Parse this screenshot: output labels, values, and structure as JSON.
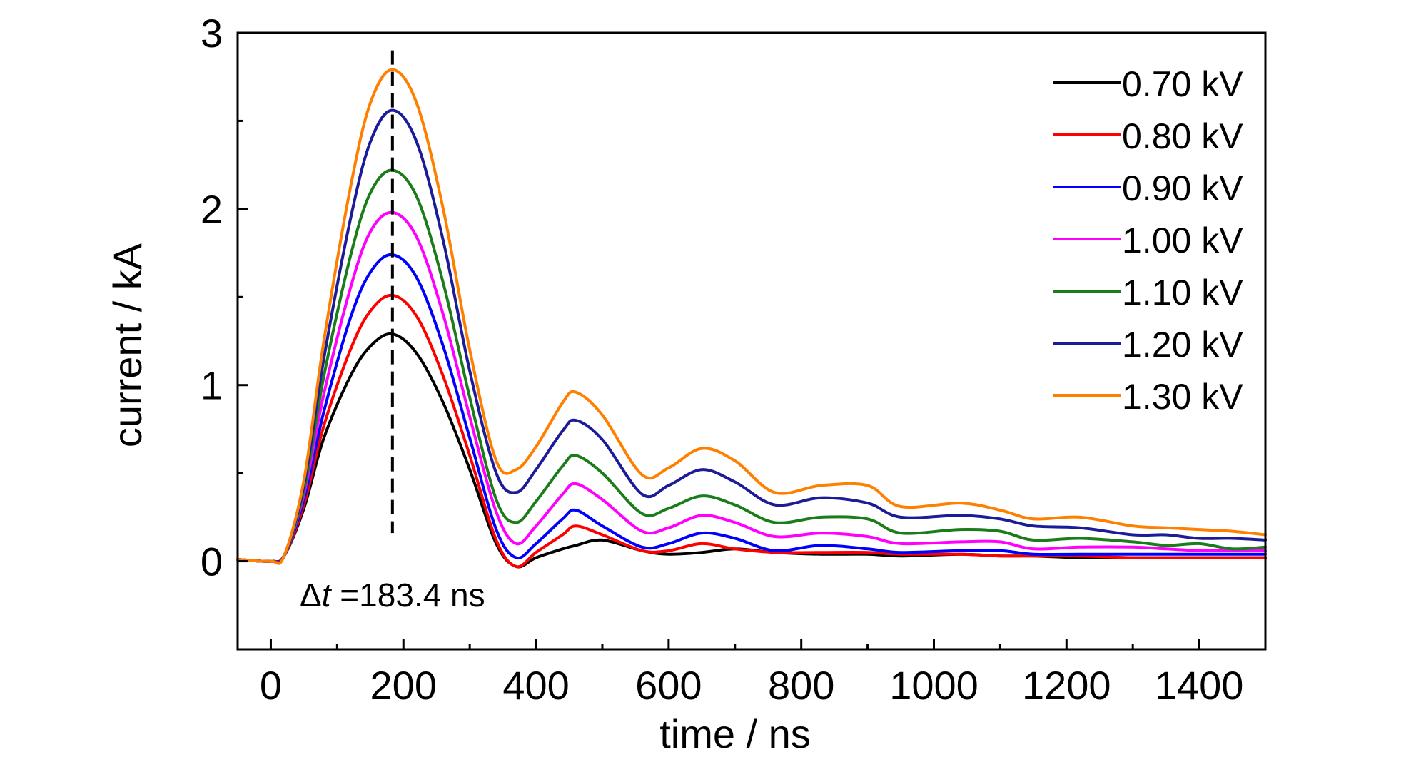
{
  "chart_data": {
    "type": "line",
    "xlabel": "time / ns",
    "ylabel": "current / kA",
    "xlim": [
      -50,
      1500
    ],
    "ylim": [
      -0.5,
      3
    ],
    "x_ticks": [
      0,
      200,
      400,
      600,
      800,
      1000,
      1200,
      1400
    ],
    "x_tick_labels": [
      "0",
      "200",
      "400",
      "600",
      "800",
      "1000",
      "1200",
      "1400"
    ],
    "y_ticks": [
      0,
      1,
      2,
      3
    ],
    "y_tick_labels": [
      "0",
      "1",
      "2",
      "3"
    ],
    "grid": false,
    "legend_position": "top-right",
    "annotation": {
      "delta_symbol": "Δ",
      "variable": "t",
      "text": " =183.4 ns",
      "marker_x": 183.4,
      "marker_y_range": [
        0.16,
        2.9
      ]
    },
    "x": [
      -50,
      0,
      20,
      50,
      80,
      120,
      150,
      183,
      220,
      260,
      300,
      340,
      370,
      400,
      440,
      460,
      500,
      560,
      600,
      650,
      700,
      760,
      830,
      900,
      950,
      1040,
      1100,
      1150,
      1220,
      1300,
      1350,
      1400,
      1450,
      1500
    ],
    "series": [
      {
        "name": "0.70 kV",
        "color": "#000000",
        "values": [
          0.01,
          0.0,
          0.03,
          0.3,
          0.7,
          1.05,
          1.22,
          1.29,
          1.18,
          0.9,
          0.52,
          0.1,
          -0.03,
          0.02,
          0.07,
          0.09,
          0.12,
          0.06,
          0.04,
          0.05,
          0.07,
          0.05,
          0.04,
          0.04,
          0.03,
          0.04,
          0.03,
          0.03,
          0.02,
          0.02,
          0.02,
          0.02,
          0.02,
          0.02
        ]
      },
      {
        "name": "0.80 kV",
        "color": "#ff0000",
        "values": [
          0.01,
          0.0,
          0.03,
          0.32,
          0.77,
          1.2,
          1.42,
          1.51,
          1.39,
          1.05,
          0.6,
          0.12,
          -0.03,
          0.05,
          0.15,
          0.2,
          0.15,
          0.06,
          0.06,
          0.1,
          0.07,
          0.05,
          0.05,
          0.05,
          0.04,
          0.04,
          0.03,
          0.03,
          0.03,
          0.02,
          0.02,
          0.02,
          0.02,
          0.02
        ]
      },
      {
        "name": "0.90 kV",
        "color": "#0000ff",
        "values": [
          0.01,
          0.0,
          0.03,
          0.35,
          0.85,
          1.38,
          1.64,
          1.74,
          1.61,
          1.22,
          0.7,
          0.18,
          0.02,
          0.1,
          0.24,
          0.29,
          0.2,
          0.08,
          0.1,
          0.16,
          0.13,
          0.06,
          0.09,
          0.07,
          0.05,
          0.06,
          0.06,
          0.04,
          0.04,
          0.04,
          0.04,
          0.04,
          0.04,
          0.04
        ]
      },
      {
        "name": "1.00 kV",
        "color": "#ff00ff",
        "values": [
          0.01,
          0.0,
          0.03,
          0.38,
          0.95,
          1.55,
          1.87,
          1.98,
          1.84,
          1.4,
          0.82,
          0.28,
          0.1,
          0.2,
          0.38,
          0.44,
          0.35,
          0.17,
          0.19,
          0.26,
          0.22,
          0.14,
          0.16,
          0.14,
          0.1,
          0.11,
          0.11,
          0.07,
          0.08,
          0.08,
          0.07,
          0.06,
          0.06,
          0.06
        ]
      },
      {
        "name": "1.10 kV",
        "color": "#1a7d1a",
        "values": [
          0.01,
          0.0,
          0.03,
          0.4,
          1.05,
          1.73,
          2.09,
          2.22,
          2.07,
          1.58,
          0.93,
          0.35,
          0.22,
          0.34,
          0.54,
          0.6,
          0.5,
          0.27,
          0.3,
          0.37,
          0.32,
          0.22,
          0.25,
          0.24,
          0.16,
          0.18,
          0.17,
          0.12,
          0.13,
          0.11,
          0.09,
          0.1,
          0.07,
          0.08
        ]
      },
      {
        "name": "1.20 kV",
        "color": "#1c1c99",
        "values": [
          0.01,
          0.0,
          0.03,
          0.43,
          1.15,
          1.94,
          2.38,
          2.56,
          2.38,
          1.82,
          1.08,
          0.5,
          0.39,
          0.52,
          0.74,
          0.8,
          0.69,
          0.38,
          0.43,
          0.52,
          0.45,
          0.32,
          0.36,
          0.33,
          0.25,
          0.26,
          0.24,
          0.2,
          0.19,
          0.15,
          0.15,
          0.13,
          0.13,
          0.12
        ]
      },
      {
        "name": "1.30 kV",
        "color": "#ff8000",
        "values": [
          0.01,
          0.0,
          0.03,
          0.46,
          1.25,
          2.12,
          2.6,
          2.79,
          2.6,
          2.0,
          1.2,
          0.57,
          0.52,
          0.65,
          0.9,
          0.96,
          0.83,
          0.49,
          0.53,
          0.64,
          0.57,
          0.39,
          0.43,
          0.43,
          0.31,
          0.33,
          0.29,
          0.24,
          0.25,
          0.2,
          0.19,
          0.18,
          0.17,
          0.15
        ]
      }
    ]
  }
}
